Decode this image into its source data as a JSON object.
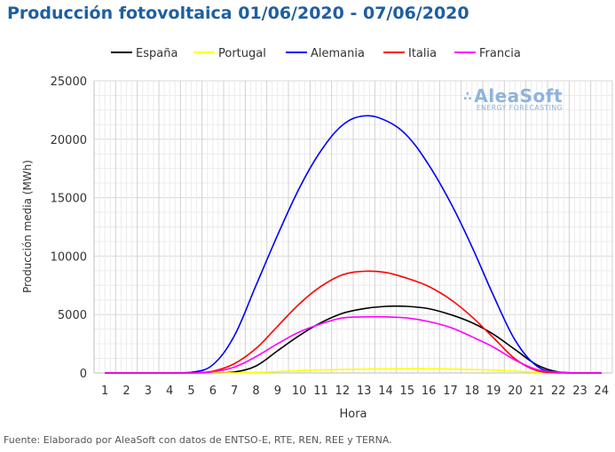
{
  "title": "Producción fotovoltaica 01/06/2020 - 07/06/2020",
  "source": "Fuente: Elaborado por AleaSoft con datos de ENTSO-E, RTE, REN, REE y TERNA.",
  "logo": {
    "name": "AleaSoft",
    "tagline": "ENERGY FORECASTING"
  },
  "chart_data": {
    "type": "line",
    "title": "Producción fotovoltaica 01/06/2020 - 07/06/2020",
    "xlabel": "Hora",
    "ylabel": "Producción media (MWh)",
    "xlim": [
      1,
      24
    ],
    "ylim": [
      0,
      25000
    ],
    "yticks": [
      0,
      5000,
      10000,
      15000,
      20000,
      25000
    ],
    "grid": true,
    "legend_position": "top",
    "x": [
      1,
      2,
      3,
      4,
      5,
      6,
      7,
      8,
      9,
      10,
      11,
      12,
      13,
      14,
      15,
      16,
      17,
      18,
      19,
      20,
      21,
      22,
      23,
      24
    ],
    "series": [
      {
        "name": "España",
        "color": "#000000",
        "values": [
          0,
          0,
          0,
          0,
          0,
          0,
          80,
          600,
          1900,
          3200,
          4300,
          5100,
          5500,
          5700,
          5700,
          5500,
          5000,
          4300,
          3300,
          2000,
          700,
          80,
          0,
          0
        ]
      },
      {
        "name": "Portugal",
        "color": "#ffff00",
        "values": [
          0,
          0,
          0,
          0,
          0,
          0,
          10,
          50,
          120,
          200,
          260,
          300,
          330,
          350,
          360,
          360,
          340,
          300,
          250,
          160,
          60,
          10,
          0,
          0
        ]
      },
      {
        "name": "Alemania",
        "color": "#0000ff",
        "values": [
          0,
          0,
          0,
          0,
          50,
          700,
          3200,
          7500,
          11800,
          15800,
          19000,
          21200,
          22000,
          21600,
          20300,
          17800,
          14600,
          10800,
          6600,
          2800,
          600,
          50,
          0,
          0
        ]
      },
      {
        "name": "Italia",
        "color": "#ff0000",
        "values": [
          0,
          0,
          0,
          0,
          0,
          150,
          800,
          2100,
          4000,
          5900,
          7400,
          8400,
          8700,
          8600,
          8100,
          7400,
          6300,
          4800,
          3000,
          1200,
          200,
          0,
          0,
          0
        ]
      },
      {
        "name": "Francia",
        "color": "#ff00ff",
        "values": [
          0,
          0,
          0,
          0,
          0,
          100,
          500,
          1400,
          2500,
          3500,
          4200,
          4700,
          4800,
          4800,
          4700,
          4400,
          3900,
          3100,
          2200,
          1100,
          300,
          50,
          0,
          0
        ]
      }
    ]
  }
}
